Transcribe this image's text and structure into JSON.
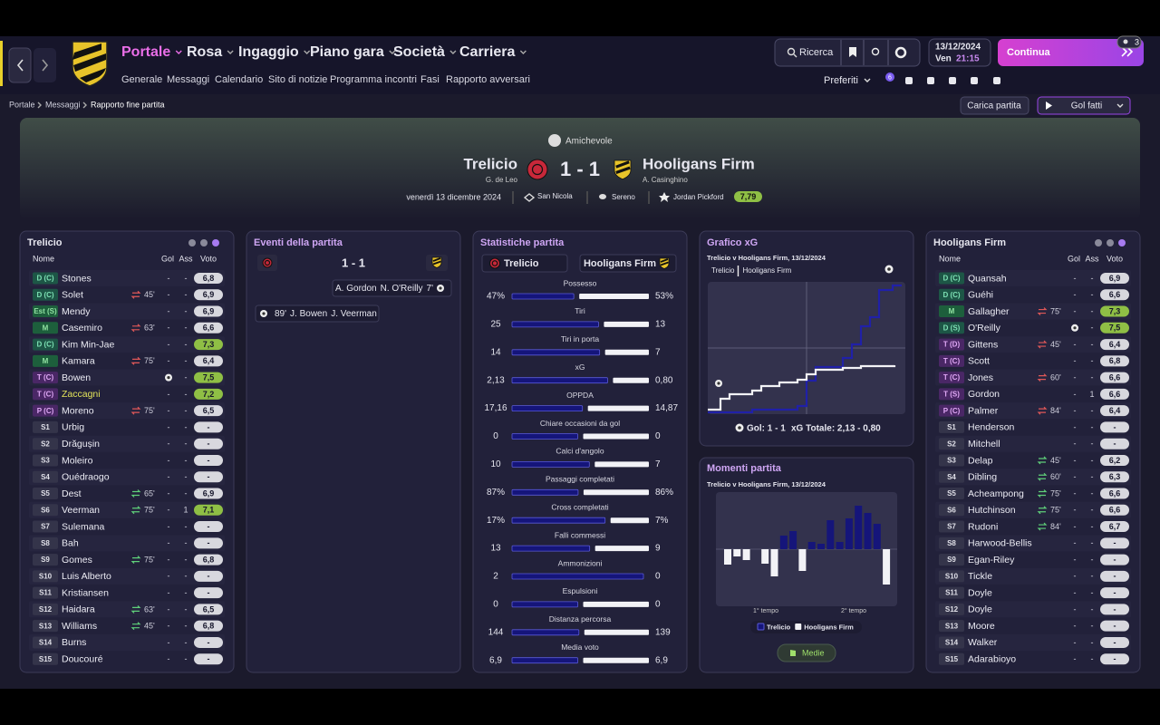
{
  "nav": {
    "menu": [
      "Portale",
      "Rosa",
      "Ingaggio",
      "Piano gara",
      "Società",
      "Carriera"
    ],
    "submenu": [
      "Generale",
      "Messaggi",
      "Calendario",
      "Sito di notizie",
      "Programma incontri",
      "Fasi",
      "Rapporto avversari"
    ],
    "search": "Ricerca",
    "date": "13/12/2024",
    "day": "Ven",
    "time": "21:15",
    "continue": "Continua",
    "badge": "3",
    "favorites": "Preferiti",
    "fav_badge": "6"
  },
  "breadcrumb": [
    "Portale",
    "Messaggi",
    "Rapporto fine partita"
  ],
  "actions": {
    "load": "Carica partita",
    "goals": "Gol fatti"
  },
  "match": {
    "competition": "Amichevole",
    "home": "Trelicio",
    "home_manager": "G. de Leo",
    "score": "1 - 1",
    "away": "Hooligans Firm",
    "away_manager": "A. Casinghino",
    "date": "venerdì 13 dicembre 2024",
    "stadium": "San Nicola",
    "weather": "Sereno",
    "player_of_match": "Jordan Pickford",
    "pom_rating": "7,79"
  },
  "columns": [
    "Nome",
    "Gol",
    "Ass",
    "Voto"
  ],
  "home_squad": [
    {
      "pos": "D (C)",
      "name": "Stones",
      "gol": "-",
      "ass": "-",
      "rating": "6,8"
    },
    {
      "pos": "D (C)",
      "name": "Solet",
      "sub": "45'",
      "gol": "-",
      "ass": "-",
      "rating": "6,9"
    },
    {
      "pos": "Est (S)",
      "name": "Mendy",
      "gol": "-",
      "ass": "-",
      "rating": "6,9"
    },
    {
      "pos": "M",
      "name": "Casemiro",
      "sub": "63'",
      "gol": "-",
      "ass": "-",
      "rating": "6,6"
    },
    {
      "pos": "D (C)",
      "name": "Kim Min-Jae",
      "gol": "-",
      "ass": "-",
      "rating": "7,3"
    },
    {
      "pos": "M",
      "name": "Kamara",
      "sub": "75'",
      "gol": "-",
      "ass": "-",
      "rating": "6,4"
    },
    {
      "pos": "T (C)",
      "name": "Bowen",
      "goal": true,
      "ass": "-",
      "rating": "7,5"
    },
    {
      "pos": "T (C)",
      "name": "Zaccagni",
      "name_color": "#e3e35a",
      "gol": "-",
      "ass": "-",
      "rating": "7,2"
    },
    {
      "pos": "P (C)",
      "name": "Moreno",
      "sub": "75'",
      "gol": "-",
      "ass": "-",
      "rating": "6,5"
    },
    {
      "pos": "S1",
      "name": "Urbig",
      "gol": "-",
      "ass": "-",
      "rating": "-"
    },
    {
      "pos": "S2",
      "name": "Drăgușin",
      "gol": "-",
      "ass": "-",
      "rating": "-"
    },
    {
      "pos": "S3",
      "name": "Moleiro",
      "gol": "-",
      "ass": "-",
      "rating": "-"
    },
    {
      "pos": "S4",
      "name": "Ouédraogo",
      "gol": "-",
      "ass": "-",
      "rating": "-"
    },
    {
      "pos": "S5",
      "name": "Dest",
      "sub": "65'",
      "gol": "-",
      "ass": "-",
      "rating": "6,9"
    },
    {
      "pos": "S6",
      "name": "Veerman",
      "sub": "75'",
      "gol": "-",
      "ass": "1",
      "rating": "7,1"
    },
    {
      "pos": "S7",
      "name": "Sulemana",
      "gol": "-",
      "ass": "-",
      "rating": "-"
    },
    {
      "pos": "S8",
      "name": "Bah",
      "gol": "-",
      "ass": "-",
      "rating": "-"
    },
    {
      "pos": "S9",
      "name": "Gomes",
      "sub": "75'",
      "gol": "-",
      "ass": "-",
      "rating": "6,8"
    },
    {
      "pos": "S10",
      "name": "Luis Alberto",
      "gol": "-",
      "ass": "-",
      "rating": "-"
    },
    {
      "pos": "S11",
      "name": "Kristiansen",
      "gol": "-",
      "ass": "-",
      "rating": "-"
    },
    {
      "pos": "S12",
      "name": "Haidara",
      "sub": "63'",
      "gol": "-",
      "ass": "-",
      "rating": "6,5"
    },
    {
      "pos": "S13",
      "name": "Williams",
      "sub": "45'",
      "gol": "-",
      "ass": "-",
      "rating": "6,8"
    },
    {
      "pos": "S14",
      "name": "Burns",
      "gol": "-",
      "ass": "-",
      "rating": "-"
    },
    {
      "pos": "S15",
      "name": "Doucouré",
      "gol": "-",
      "ass": "-",
      "rating": "-"
    }
  ],
  "away_squad": [
    {
      "pos": "D (C)",
      "name": "Quansah",
      "gol": "-",
      "ass": "-",
      "rating": "6,9"
    },
    {
      "pos": "D (C)",
      "name": "Guéhi",
      "gol": "-",
      "ass": "-",
      "rating": "6,6"
    },
    {
      "pos": "M",
      "name": "Gallagher",
      "sub": "75'",
      "gol": "-",
      "ass": "-",
      "rating": "7,3"
    },
    {
      "pos": "D (S)",
      "name": "O'Reilly",
      "goal": true,
      "ass": "-",
      "rating": "7,5"
    },
    {
      "pos": "T (D)",
      "name": "Gittens",
      "sub": "45'",
      "gol": "-",
      "ass": "-",
      "rating": "6,4"
    },
    {
      "pos": "T (C)",
      "name": "Scott",
      "gol": "-",
      "ass": "-",
      "rating": "6,8"
    },
    {
      "pos": "T (C)",
      "name": "Jones",
      "sub": "60'",
      "gol": "-",
      "ass": "-",
      "rating": "6,6"
    },
    {
      "pos": "T (S)",
      "name": "Gordon",
      "gol": "-",
      "ass": "1",
      "rating": "6,6"
    },
    {
      "pos": "P (C)",
      "name": "Palmer",
      "sub": "84'",
      "gol": "-",
      "ass": "-",
      "rating": "6,4"
    },
    {
      "pos": "S1",
      "name": "Henderson",
      "gol": "-",
      "ass": "-",
      "rating": "-"
    },
    {
      "pos": "S2",
      "name": "Mitchell",
      "gol": "-",
      "ass": "-",
      "rating": "-"
    },
    {
      "pos": "S3",
      "name": "Delap",
      "sub": "45'",
      "gol": "-",
      "ass": "-",
      "rating": "6,2"
    },
    {
      "pos": "S4",
      "name": "Dibling",
      "sub": "60'",
      "gol": "-",
      "ass": "-",
      "rating": "6,3"
    },
    {
      "pos": "S5",
      "name": "Acheampong",
      "sub": "75'",
      "gol": "-",
      "ass": "-",
      "rating": "6,6"
    },
    {
      "pos": "S6",
      "name": "Hutchinson",
      "sub": "75'",
      "gol": "-",
      "ass": "-",
      "rating": "6,6"
    },
    {
      "pos": "S7",
      "name": "Rudoni",
      "sub": "84'",
      "gol": "-",
      "ass": "-",
      "rating": "6,7"
    },
    {
      "pos": "S8",
      "name": "Harwood-Bellis",
      "gol": "-",
      "ass": "-",
      "rating": "-"
    },
    {
      "pos": "S9",
      "name": "Egan-Riley",
      "gol": "-",
      "ass": "-",
      "rating": "-"
    },
    {
      "pos": "S10",
      "name": "Tickle",
      "gol": "-",
      "ass": "-",
      "rating": "-"
    },
    {
      "pos": "S11",
      "name": "Doyle",
      "gol": "-",
      "ass": "-",
      "rating": "-"
    },
    {
      "pos": "S12",
      "name": "Doyle",
      "gol": "-",
      "ass": "-",
      "rating": "-"
    },
    {
      "pos": "S13",
      "name": "Moore",
      "gol": "-",
      "ass": "-",
      "rating": "-"
    },
    {
      "pos": "S14",
      "name": "Walker",
      "gol": "-",
      "ass": "-",
      "rating": "-"
    },
    {
      "pos": "S15",
      "name": "Adarabioyo",
      "gol": "-",
      "ass": "-",
      "rating": "-"
    }
  ],
  "events": {
    "title": "Eventi della partita",
    "items": [
      {
        "side": "away",
        "assist": "A. Gordon",
        "scorer": "N. O'Reilly",
        "minute": "7'"
      },
      {
        "side": "home",
        "minute": "89'",
        "scorer": "J. Bowen",
        "assist": "J. Veerman"
      }
    ]
  },
  "stats": {
    "title": "Statistiche partita",
    "rows": [
      {
        "label": "Possesso",
        "home": "47%",
        "away": "53%"
      },
      {
        "label": "Tiri",
        "home": "25",
        "away": "13"
      },
      {
        "label": "Tiri in porta",
        "home": "14",
        "away": "7"
      },
      {
        "label": "xG",
        "home": "2,13",
        "away": "0,80"
      },
      {
        "label": "OPPDA",
        "home": "17,16",
        "away": "14,87"
      },
      {
        "label": "Chiare occasioni da gol",
        "home": "0",
        "away": "0"
      },
      {
        "label": "Calci d'angolo",
        "home": "10",
        "away": "7"
      },
      {
        "label": "Passaggi completati",
        "home": "87%",
        "away": "86%"
      },
      {
        "label": "Cross completati",
        "home": "17%",
        "away": "7%"
      },
      {
        "label": "Falli commessi",
        "home": "13",
        "away": "9"
      },
      {
        "label": "Ammonizioni",
        "home": "2",
        "away": "0"
      },
      {
        "label": "Espulsioni",
        "home": "0",
        "away": "0"
      },
      {
        "label": "Distanza percorsa",
        "home": "144",
        "away": "139"
      },
      {
        "label": "Media voto",
        "home": "6,9",
        "away": "6,9"
      }
    ]
  },
  "xg": {
    "title": "Grafico xG",
    "subtitle": "Trelicio v Hooligans Firm, 13/12/2024",
    "goals": "Gol: 1 - 1",
    "total": "xG Totale: 2,13 - 0,80"
  },
  "momentum": {
    "title": "Momenti partita",
    "subtitle": "Trelicio v Hooligans Firm, 13/12/2024",
    "halves": [
      "1° tempo",
      "2° tempo"
    ],
    "button": "Medie",
    "values": [
      -17,
      -8,
      -12,
      0,
      -16,
      -30,
      15,
      20,
      -24,
      8,
      6,
      32,
      8,
      34,
      48,
      40,
      28,
      -39
    ]
  }
}
